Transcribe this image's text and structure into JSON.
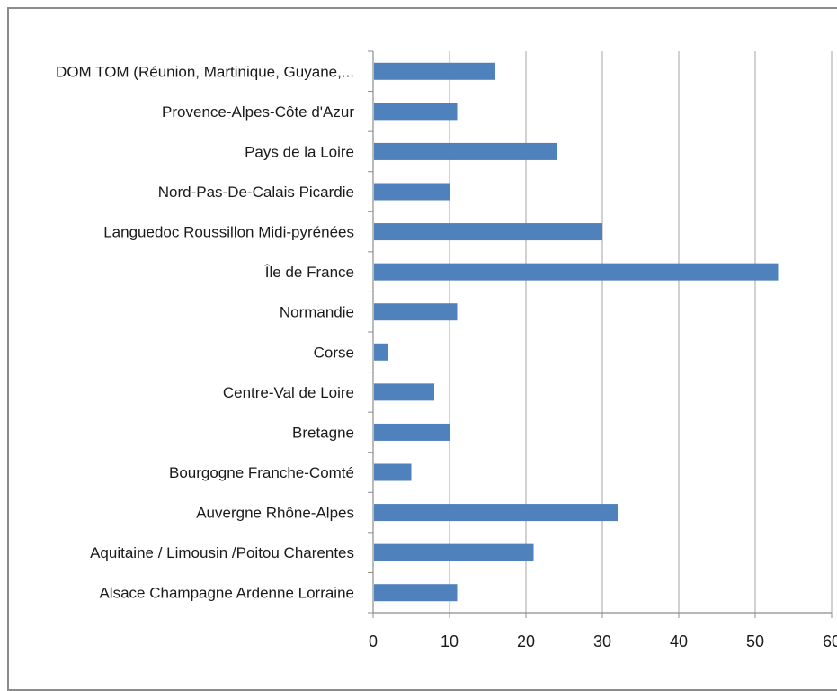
{
  "chart_data": {
    "type": "bar",
    "orientation": "horizontal",
    "title": "",
    "xlabel": "",
    "ylabel": "",
    "categories": [
      "DOM TOM (Réunion, Martinique, Guyane,...",
      "Provence-Alpes-Côte d'Azur",
      "Pays de la Loire",
      "Nord-Pas-De-Calais Picardie",
      "Languedoc Roussillon Midi-pyrénées",
      "Île de France",
      "Normandie",
      "Corse",
      "Centre-Val de Loire",
      "Bretagne",
      "Bourgogne Franche-Comté",
      "Auvergne Rhône-Alpes",
      "Aquitaine / Limousin  /Poitou Charentes",
      "Alsace Champagne Ardenne Lorraine"
    ],
    "values": [
      16,
      11,
      24,
      10,
      30,
      53,
      11,
      2,
      8,
      10,
      5,
      32,
      21,
      11
    ],
    "xlim": [
      0,
      60
    ],
    "xticks": [
      "0",
      "10",
      "20",
      "30",
      "40",
      "50",
      "60"
    ],
    "grid": true,
    "legend": "none",
    "bar_color": "#4f81bd",
    "grid_color": "#a6a6a6"
  }
}
